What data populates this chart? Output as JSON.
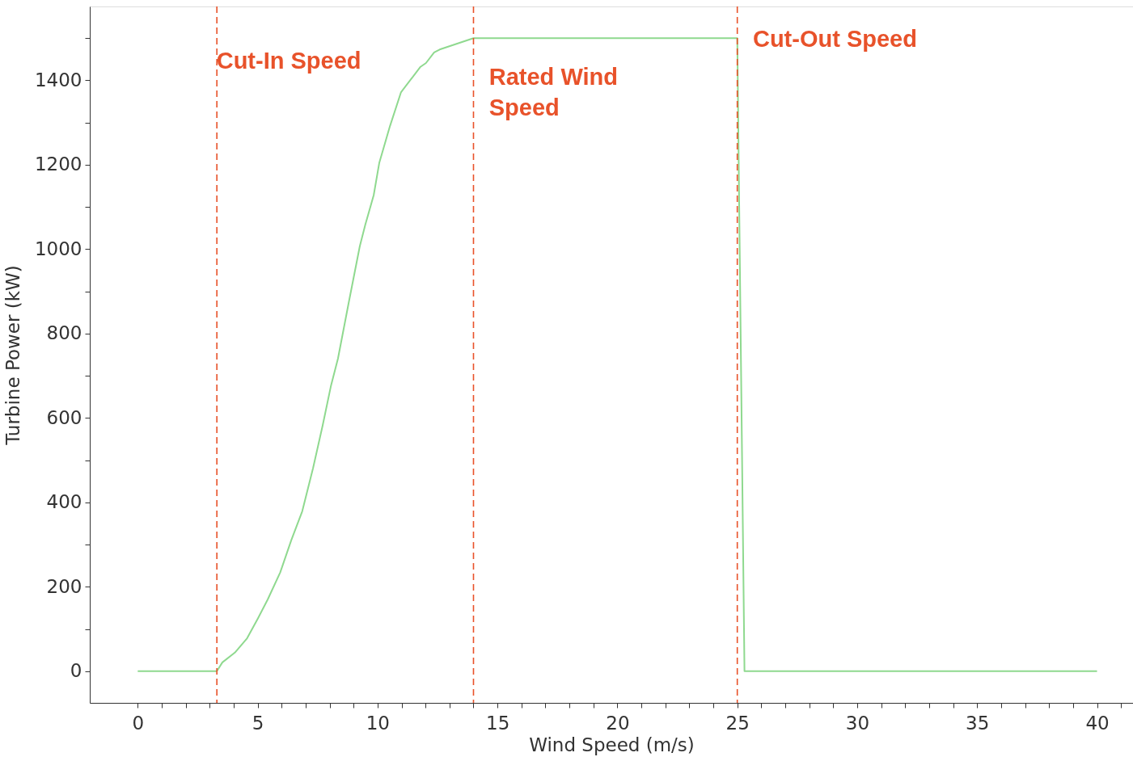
{
  "chart_data": {
    "type": "line",
    "xlabel": "Wind Speed (m/s)",
    "ylabel": "Turbine Power (kW)",
    "series": [
      {
        "color": "#8fd98f",
        "x": [
          0,
          3.3,
          3.53,
          4.05,
          4.56,
          5.02,
          5.42,
          5.94,
          6.4,
          6.86,
          7.31,
          7.71,
          8.06,
          8.35,
          8.8,
          9.26,
          9.49,
          9.84,
          10.07,
          10.52,
          10.98,
          11.79,
          12.02,
          12.36,
          12.59,
          14,
          25,
          25.3,
          40
        ],
        "values": [
          0,
          0,
          21,
          44,
          78,
          126,
          170,
          234,
          310,
          379,
          481,
          582,
          677,
          741,
          874,
          1007,
          1058,
          1128,
          1204,
          1292,
          1372,
          1432,
          1441,
          1466,
          1473,
          1500,
          1500,
          0,
          0
        ]
      }
    ],
    "xlim": [
      -2,
      41.5
    ],
    "ylim": [
      -75,
      1575
    ],
    "xticks": [
      0,
      {
        "value": 1,
        "label": null
      },
      {
        "value": 2,
        "label": null
      },
      {
        "value": 3,
        "label": null
      },
      {
        "value": 4,
        "label": null
      },
      5,
      {
        "value": 6,
        "label": null
      },
      {
        "value": 7,
        "label": null
      },
      {
        "value": 8,
        "label": null
      },
      {
        "value": 9,
        "label": null
      },
      10,
      {
        "value": 11,
        "label": null
      },
      {
        "value": 12,
        "label": null
      },
      {
        "value": 13,
        "label": null
      },
      {
        "value": 14,
        "label": null
      },
      15,
      {
        "value": 16,
        "label": null
      },
      {
        "value": 17,
        "label": null
      },
      {
        "value": 18,
        "label": null
      },
      {
        "value": 19,
        "label": null
      },
      20,
      {
        "value": 21,
        "label": null
      },
      {
        "value": 22,
        "label": null
      },
      {
        "value": 23,
        "label": null
      },
      {
        "value": 24,
        "label": null
      },
      25,
      {
        "value": 26,
        "label": null
      },
      {
        "value": 27,
        "label": null
      },
      {
        "value": 28,
        "label": null
      },
      {
        "value": 29,
        "label": null
      },
      30,
      {
        "value": 31,
        "label": null
      },
      {
        "value": 32,
        "label": null
      },
      {
        "value": 33,
        "label": null
      },
      {
        "value": 34,
        "label": null
      },
      35,
      {
        "value": 36,
        "label": null
      },
      {
        "value": 37,
        "label": null
      },
      {
        "value": 38,
        "label": null
      },
      {
        "value": 39,
        "label": null
      },
      40,
      {
        "value": 41,
        "label": null
      }
    ],
    "yticks": [
      0,
      {
        "value": 100,
        "label": null
      },
      200,
      {
        "value": 300,
        "label": null
      },
      400,
      {
        "value": 500,
        "label": null
      },
      600,
      {
        "value": 700,
        "label": null
      },
      800,
      {
        "value": 900,
        "label": null
      },
      1000,
      {
        "value": 1100,
        "label": null
      },
      1200,
      {
        "value": 1300,
        "label": null
      },
      1400,
      {
        "value": 1500,
        "label": null
      }
    ],
    "ref_lines": [
      {
        "axis": "x",
        "value": 3.3,
        "label": "Cut-In Speed",
        "color": "#e8522a",
        "line_style": "dashed"
      },
      {
        "axis": "x",
        "value": 14,
        "label": "Rated Wind\nSpeed",
        "color": "#e8522a",
        "line_style": "dashed"
      },
      {
        "axis": "x",
        "value": 25,
        "label": "Cut-Out Speed",
        "color": "#e8522a",
        "line_style": "dashed"
      }
    ],
    "grid": false,
    "marker": "none",
    "line_style": "solid"
  }
}
